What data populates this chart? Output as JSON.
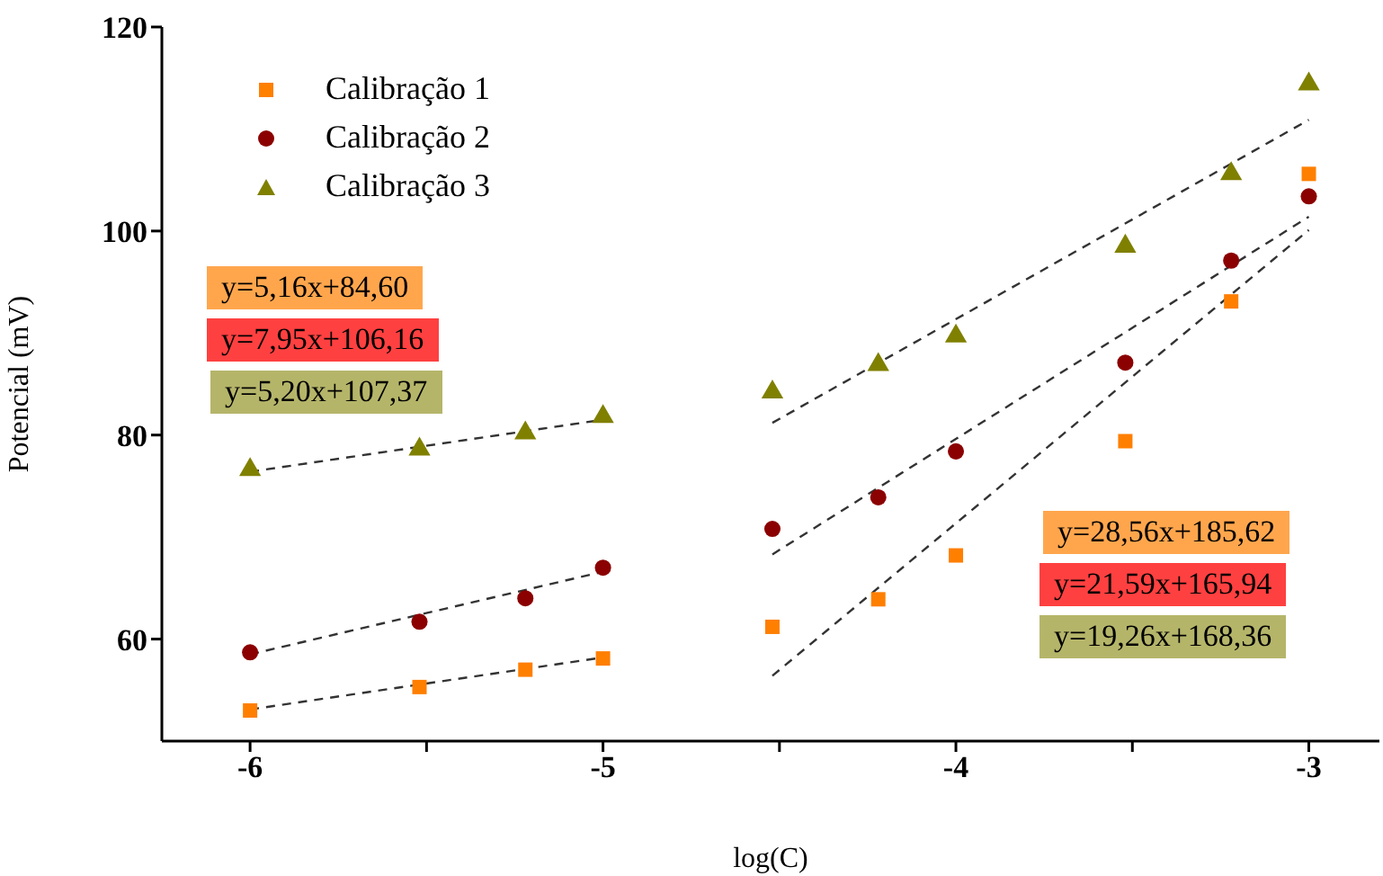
{
  "chart_data": {
    "type": "scatter",
    "xlabel": "log(C)",
    "ylabel": "Potencial (mV)",
    "xlim": [
      -6.25,
      -2.8
    ],
    "xticks": [
      -6,
      {
        "value": -5.5,
        "label": null
      },
      -5,
      {
        "value": -4.5,
        "label": null
      },
      -4,
      {
        "value": -3.5,
        "label": null
      },
      -3
    ],
    "ylim": [
      50,
      120
    ],
    "yticks": [
      60,
      80,
      100,
      120
    ],
    "grid": false,
    "legend": "top left",
    "series": [
      {
        "name": "Calibração 1",
        "marker": "square",
        "color": "#ff7f00",
        "x": [
          -6,
          -5.52,
          -5.22,
          -5,
          -4.52,
          -4.22,
          -4,
          -3.52,
          -3.22,
          -3
        ],
        "values": [
          53.0,
          55.3,
          57.0,
          58.1,
          61.2,
          63.9,
          68.2,
          79.4,
          93.1,
          105.6
        ]
      },
      {
        "name": "Calibração 2",
        "marker": "circle",
        "color": "#8b0000",
        "x": [
          -6,
          -5.52,
          -5.22,
          -5,
          -4.52,
          -4.22,
          -4,
          -3.52,
          -3.22,
          -3
        ],
        "values": [
          58.7,
          61.7,
          64.0,
          67.0,
          70.8,
          73.9,
          78.4,
          87.1,
          97.1,
          103.4
        ]
      },
      {
        "name": "Calibração 3",
        "marker": "triangle",
        "color": "#808000",
        "x": [
          -6,
          -5.52,
          -5.22,
          -5,
          -4.52,
          -4.22,
          -4,
          -3.52,
          -3.22,
          -3
        ],
        "values": [
          76.6,
          78.6,
          80.2,
          81.8,
          84.2,
          86.9,
          89.7,
          98.5,
          105.6,
          114.4
        ]
      },
      {
        "type": "line",
        "line_style": "dashed",
        "marker": "none",
        "color": "#333333",
        "x": [
          -6,
          -5
        ],
        "values": [
          53.1,
          58.2
        ]
      },
      {
        "type": "line",
        "line_style": "dashed",
        "marker": "none",
        "color": "#333333",
        "x": [
          -6,
          -5
        ],
        "values": [
          58.5,
          66.6
        ]
      },
      {
        "type": "line",
        "line_style": "dashed",
        "marker": "none",
        "color": "#333333",
        "x": [
          -6,
          -5
        ],
        "values": [
          76.4,
          81.5
        ]
      },
      {
        "type": "line",
        "line_style": "dashed",
        "marker": "none",
        "color": "#333333",
        "x": [
          -4.52,
          -3
        ],
        "values": [
          56.4,
          100.1
        ]
      },
      {
        "type": "line",
        "line_style": "dashed",
        "marker": "none",
        "color": "#333333",
        "x": [
          -4.52,
          -3
        ],
        "values": [
          68.3,
          101.4
        ]
      },
      {
        "type": "line",
        "line_style": "dashed",
        "marker": "none",
        "color": "#333333",
        "x": [
          -4.52,
          -3
        ],
        "values": [
          81.2,
          110.9
        ]
      }
    ],
    "annotations": [
      "y=5,16x+84,60",
      "y=7,95x+106,16",
      "y=5,20x+107,37",
      "y=28,56x+185,62",
      "y=21,59x+165,94",
      "y=19,26x+168,36"
    ]
  }
}
